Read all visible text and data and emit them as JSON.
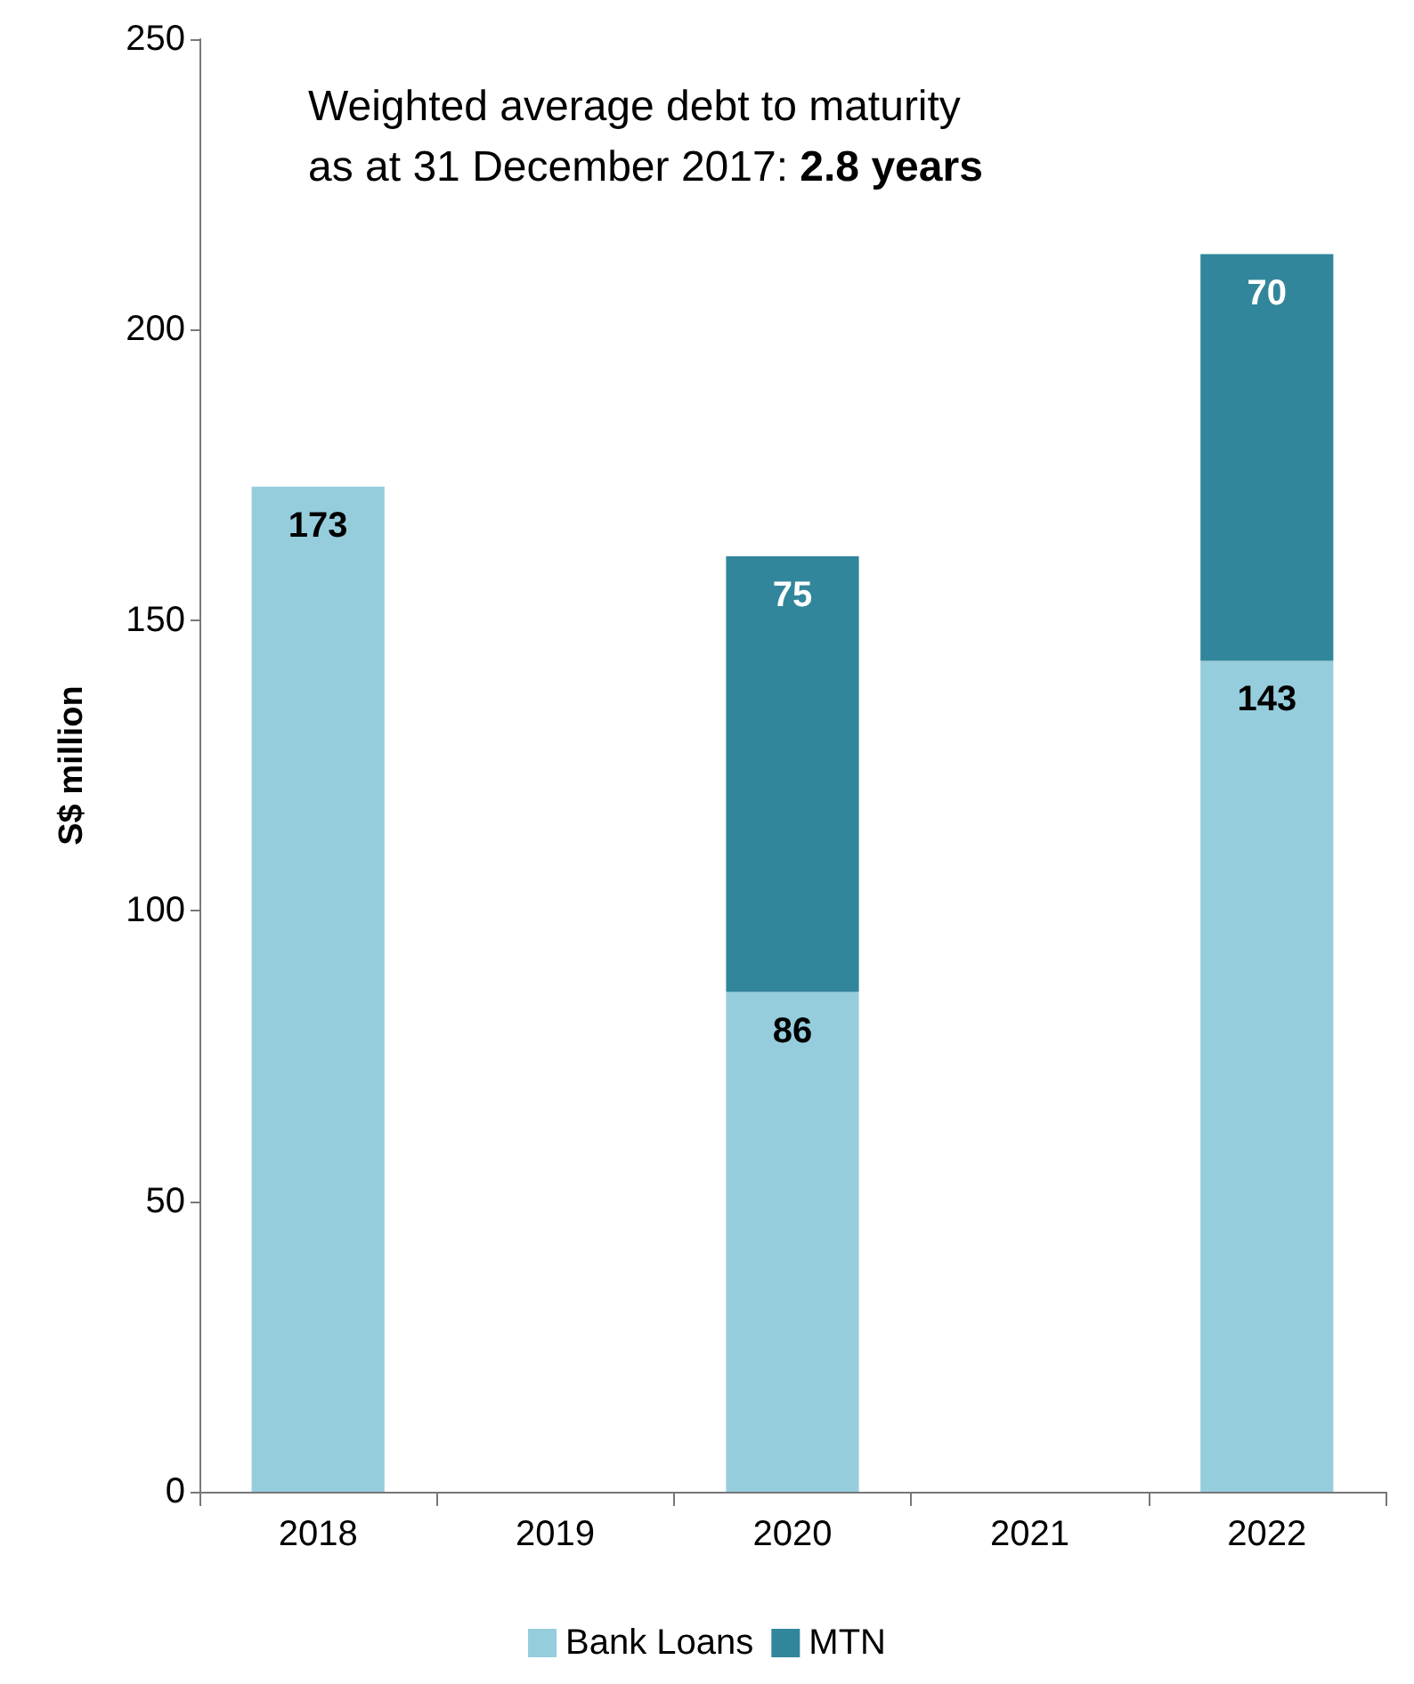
{
  "chart_data": {
    "type": "bar",
    "title": "Weighted average debt to maturity\nas at 31 December 2017: 2.8 years",
    "ylabel": "S$ million",
    "categories": [
      "2018",
      "2019",
      "2020",
      "2021",
      "2022"
    ],
    "stacked": true,
    "series": [
      {
        "name": "Bank Loans",
        "color": "#96cddc",
        "values": [
          173,
          null,
          86,
          null,
          143
        ]
      },
      {
        "name": "MTN",
        "color": "#31869b",
        "values": [
          null,
          null,
          75,
          null,
          70
        ]
      }
    ],
    "ylim": [
      0,
      250
    ],
    "yticks": [
      0,
      50,
      100,
      150,
      200,
      250
    ],
    "data_labels": true,
    "grid": false,
    "legend": "bottom"
  }
}
